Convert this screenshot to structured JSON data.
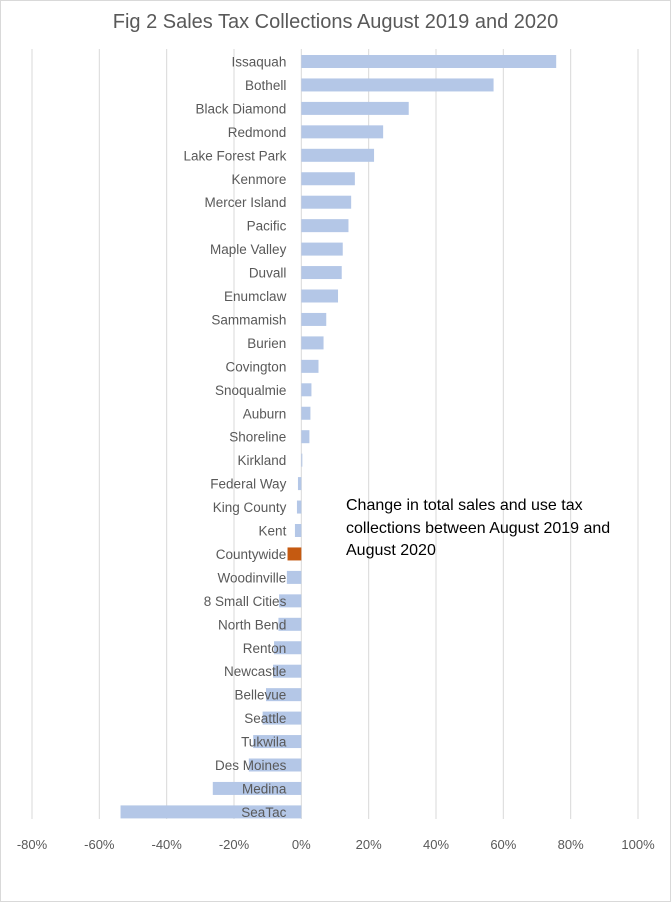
{
  "chart_data": {
    "type": "bar",
    "orientation": "horizontal",
    "title": "Fig 2 Sales Tax Collections August  2019 and 2020",
    "xlabel": "",
    "ylabel": "",
    "xlim": [
      -80,
      100
    ],
    "x_ticks": [
      -80,
      -60,
      -40,
      -20,
      0,
      20,
      40,
      60,
      80,
      100
    ],
    "tick_suffix": "%",
    "grid": "vertical",
    "legend": "none",
    "annotation": "Change in total sales and use tax collections between August 2019 and August 2020",
    "colors": {
      "bar": "#b4c7e7",
      "highlight": "#c55a11",
      "grid": "#d9d9d9",
      "text": "#595959"
    },
    "highlight_category": "Countywide",
    "categories": [
      "Issaquah",
      "Bothell",
      "Black Diamond",
      "Redmond",
      "Lake Forest Park",
      "Kenmore",
      "Mercer Island",
      "Pacific",
      "Maple Valley",
      "Duvall",
      "Enumclaw",
      "Sammamish",
      "Burien",
      "Covington",
      "Snoqualmie",
      "Auburn",
      "Shoreline",
      "Kirkland",
      "Federal Way",
      "King County",
      "Kent",
      "Countywide",
      "Woodinville",
      "8 Small Cities",
      "North Bend",
      "Renton",
      "Newcastle",
      "Bellevue",
      "Seattle",
      "Tukwila",
      "Des Moines",
      "Medina",
      "SeaTac"
    ],
    "values": [
      75.7,
      57.1,
      31.9,
      24.3,
      21.6,
      15.9,
      14.8,
      14,
      12.3,
      12,
      10.9,
      7.4,
      6.6,
      5.1,
      3,
      2.7,
      2.4,
      0.3,
      -1,
      -1.3,
      -1.9,
      -4.1,
      -4.3,
      -6.6,
      -6.8,
      -8.1,
      -8.4,
      -10.5,
      -11.5,
      -14.3,
      -15.6,
      -26.3,
      -53.7
    ]
  }
}
